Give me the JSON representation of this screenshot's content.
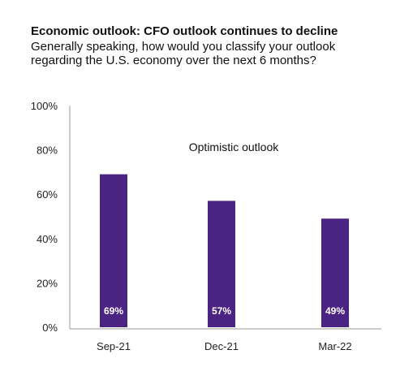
{
  "chart_data": {
    "type": "bar",
    "title": "Economic outlook: CFO outlook continues to decline",
    "subtitle": "Generally speaking, how would you classify your outlook regarding the U.S. economy over the next 6 months?",
    "annotation": "Optimistic outlook",
    "categories": [
      "Sep-21",
      "Dec-21",
      "Mar-22"
    ],
    "values": [
      69,
      57,
      49
    ],
    "data_labels": [
      "69%",
      "57%",
      "49%"
    ],
    "ylim": [
      0,
      100
    ],
    "yticks": [
      0,
      20,
      40,
      60,
      80,
      100
    ],
    "ytick_labels": [
      "0%",
      "20%",
      "40%",
      "60%",
      "80%",
      "100%"
    ],
    "bar_color": "#4b2483",
    "grid": false
  }
}
